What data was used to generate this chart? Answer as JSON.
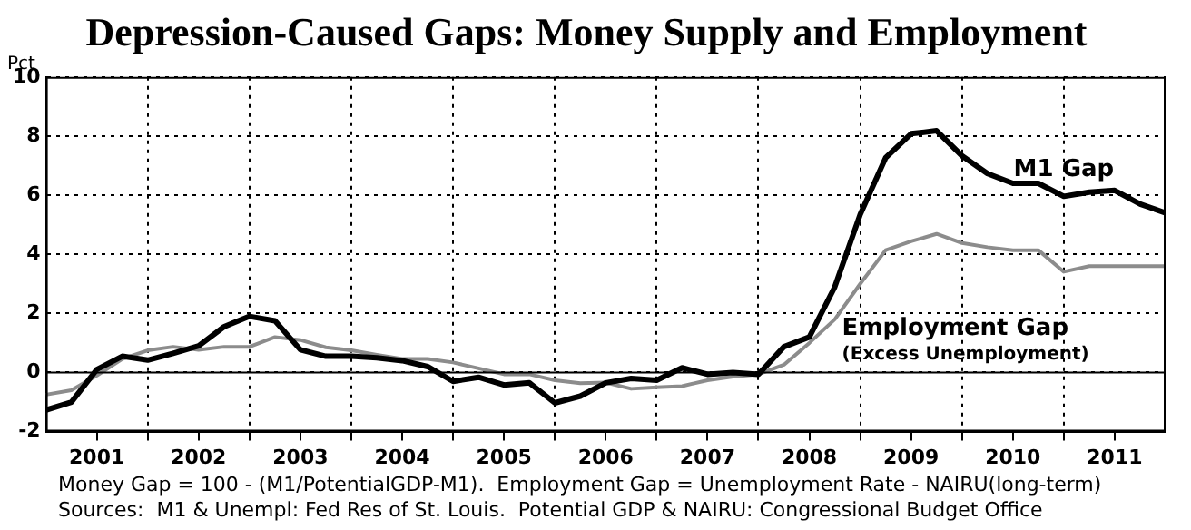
{
  "chart_data": {
    "type": "line",
    "title": "Depression-Caused Gaps: Money Supply and Employment",
    "ylabel": "Pct",
    "annotations": [
      "(Excess Unemployment)",
      "Money Gap = 100 - (M1/PotentialGDP-M1).  Employment Gap = Unemployment Rate - NAIRU(long-term)",
      "Sources:  M1 & Unempl: Fed Res of St. Louis.  Potential GDP & NAIRU: Congressional Budget Office"
    ],
    "x": [
      2001,
      2001.25,
      2001.5,
      2001.75,
      2002,
      2002.25,
      2002.5,
      2002.75,
      2003,
      2003.25,
      2003.5,
      2003.75,
      2004,
      2004.25,
      2004.5,
      2004.75,
      2005,
      2005.25,
      2005.5,
      2005.75,
      2006,
      2006.25,
      2006.5,
      2006.75,
      2007,
      2007.25,
      2007.5,
      2007.75,
      2008,
      2008.25,
      2008.5,
      2008.75,
      2009,
      2009.25,
      2009.5,
      2009.75,
      2010,
      2010.25,
      2010.5,
      2010.75,
      2011,
      2011.25,
      2011.5,
      2011.75,
      2012
    ],
    "series": [
      {
        "name": "M1 Gap",
        "color": "#000000",
        "values": [
          -1.27,
          -1.0,
          0.1,
          0.55,
          0.42,
          0.65,
          0.9,
          1.55,
          1.9,
          1.75,
          0.77,
          0.55,
          0.55,
          0.5,
          0.4,
          0.2,
          -0.3,
          -0.16,
          -0.42,
          -0.35,
          -1.03,
          -0.8,
          -0.35,
          -0.2,
          -0.26,
          0.16,
          -0.06,
          0.0,
          -0.06,
          0.87,
          1.2,
          2.9,
          5.35,
          7.27,
          8.08,
          8.18,
          7.33,
          6.73,
          6.4,
          6.4,
          5.96,
          6.1,
          6.16,
          5.7,
          5.4
        ]
      },
      {
        "name": "Employment Gap",
        "color": "#8c8c8c",
        "values": [
          -0.75,
          -0.6,
          -0.1,
          0.46,
          0.75,
          0.87,
          0.77,
          0.87,
          0.87,
          1.2,
          1.1,
          0.85,
          0.75,
          0.6,
          0.46,
          0.46,
          0.34,
          0.14,
          -0.06,
          -0.06,
          -0.26,
          -0.36,
          -0.34,
          -0.55,
          -0.5,
          -0.46,
          -0.26,
          -0.14,
          -0.06,
          0.26,
          1.0,
          1.8,
          3.0,
          4.14,
          4.44,
          4.69,
          4.38,
          4.24,
          4.14,
          4.14,
          3.41,
          3.6,
          3.6,
          3.6,
          3.6
        ]
      }
    ],
    "xlim": [
      2001,
      2012
    ],
    "xticks": [
      {
        "value": 2001.5,
        "label": "2001"
      },
      {
        "value": 2002,
        "label": null
      },
      {
        "value": 2002.5,
        "label": "2002"
      },
      {
        "value": 2003,
        "label": null
      },
      {
        "value": 2003.5,
        "label": "2003"
      },
      {
        "value": 2004,
        "label": null
      },
      {
        "value": 2004.5,
        "label": "2004"
      },
      {
        "value": 2005,
        "label": null
      },
      {
        "value": 2005.5,
        "label": "2005"
      },
      {
        "value": 2006,
        "label": null
      },
      {
        "value": 2006.5,
        "label": "2006"
      },
      {
        "value": 2007,
        "label": null
      },
      {
        "value": 2007.5,
        "label": "2007"
      },
      {
        "value": 2008,
        "label": null
      },
      {
        "value": 2008.5,
        "label": "2008"
      },
      {
        "value": 2009,
        "label": null
      },
      {
        "value": 2009.5,
        "label": "2009"
      },
      {
        "value": 2010,
        "label": null
      },
      {
        "value": 2010.5,
        "label": "2010"
      },
      {
        "value": 2011,
        "label": null
      },
      {
        "value": 2011.5,
        "label": "2011"
      }
    ],
    "ylim": [
      -2,
      10
    ],
    "yticks": [
      -2,
      0,
      2,
      4,
      6,
      8,
      10
    ],
    "ref_lines": [
      {
        "axis": "y",
        "value": 0,
        "color": "#000000"
      }
    ],
    "grid": true,
    "legend": false,
    "marker": "none",
    "line_style": "solid"
  }
}
